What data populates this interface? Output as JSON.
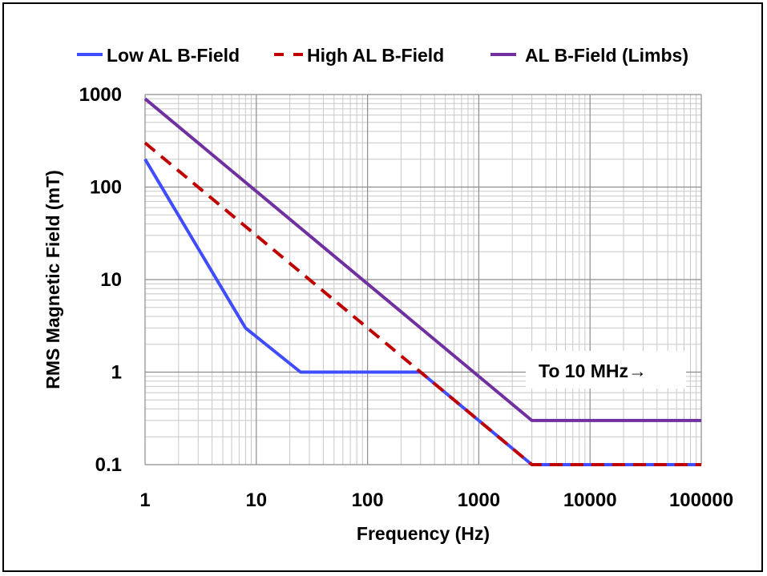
{
  "chart_data": {
    "type": "line",
    "title": "",
    "xlabel": "Frequency (Hz)",
    "ylabel": "RMS Magnetic Field (mT)",
    "xscale": "log",
    "yscale": "log",
    "xlim": [
      1,
      100000
    ],
    "ylim": [
      0.1,
      1000
    ],
    "x_ticks": [
      "1",
      "10",
      "100",
      "1000",
      "10000",
      "100000"
    ],
    "y_ticks": [
      "0.1",
      "1",
      "10",
      "100",
      "1000"
    ],
    "grid": true,
    "legend_position": "top",
    "annotation": "To 10 MHz→",
    "series": [
      {
        "name": "Low AL B-Field",
        "color": "#3f4cff",
        "style": "solid",
        "x": [
          1,
          8,
          25,
          300,
          3000,
          100000
        ],
        "y": [
          200,
          3,
          1,
          1,
          0.1,
          0.1
        ]
      },
      {
        "name": "High AL B-Field",
        "color": "#c00000",
        "style": "dashed",
        "x": [
          1,
          300,
          3000,
          100000
        ],
        "y": [
          300,
          1,
          0.1,
          0.1
        ]
      },
      {
        "name": "AL B-Field (Limbs)",
        "color": "#7030a0",
        "style": "solid",
        "x": [
          1,
          3000,
          100000
        ],
        "y": [
          900,
          0.3,
          0.3
        ]
      }
    ]
  }
}
